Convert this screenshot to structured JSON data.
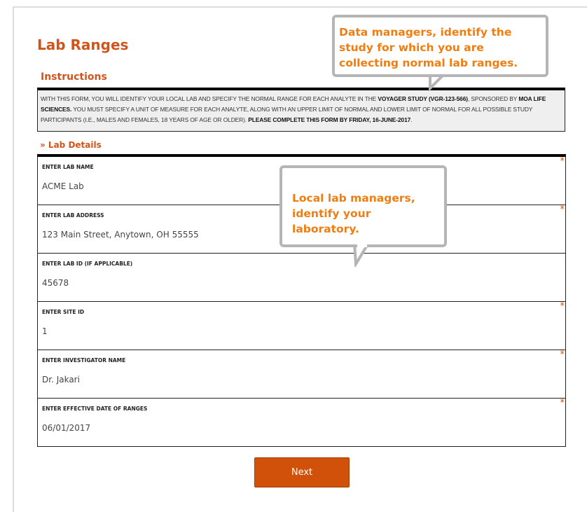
{
  "page": {
    "title": "Lab Ranges"
  },
  "instructions": {
    "heading": "Instructions",
    "t1": "WITH THIS FORM, YOU WILL IDENTIFY YOUR LOCAL LAB AND SPECIFY THE NORMAL RANGE FOR EACH ANALYTE IN THE ",
    "b1": "VOYAGER STUDY (VGR-123-566)",
    "t2": ", SPONSORED BY ",
    "b2": "MOA LIFE SCIENCES.",
    "t3": " YOU MUST SPECIFY A UNIT OF MEASURE FOR EACH ANALYTE, ALONG WITH AN UPPER LIMIT OF NORMAL AND LOWER LIMIT OF NORMAL FOR ALL POSSIBLE STUDY PARTICIPANTS (I.E., MALES AND FEMALES, 18 YEARS OF AGE OR OLDER). ",
    "b3": "PLEASE COMPLETE THIS FORM BY FRIDAY, 16-JUNE-2017",
    "t4": "."
  },
  "section": {
    "title": "» Lab Details"
  },
  "fields": [
    {
      "label": "ENTER LAB NAME",
      "value": "ACME Lab",
      "required": "*"
    },
    {
      "label": "ENTER LAB ADDRESS",
      "value": "123 Main Street, Anytown, OH 55555",
      "required": "*"
    },
    {
      "label": "ENTER LAB ID (IF APPLICABLE)",
      "value": "45678",
      "required": ""
    },
    {
      "label": "ENTER SITE ID",
      "value": "1",
      "required": "*"
    },
    {
      "label": "ENTER INVESTIGATOR NAME",
      "value": "Dr. Jakari",
      "required": "*"
    },
    {
      "label": "ENTER EFFECTIVE DATE OF RANGES",
      "value": "06/01/2017",
      "required": "*"
    }
  ],
  "next_label": "Next",
  "callouts": {
    "data_managers": "Data managers, identify the study for which you are collecting normal lab ranges.",
    "lab_managers": "Local lab managers, identify your laboratory."
  },
  "colors": {
    "accent": "#d1541a",
    "button": "#d1500a",
    "callout_text": "#ef7d10"
  }
}
